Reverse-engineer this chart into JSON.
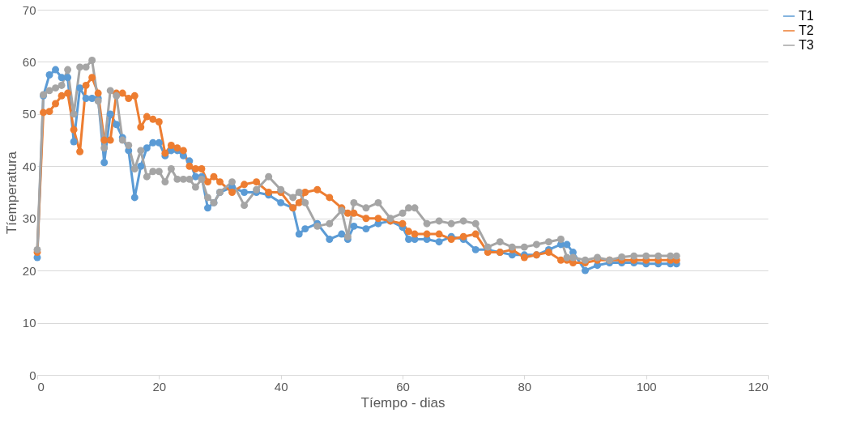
{
  "chart_data": {
    "type": "line",
    "xlabel": "Tíempo - dias",
    "ylabel": "Tíemperatura",
    "x": [
      0,
      1,
      2,
      3,
      4,
      5,
      6,
      7,
      8,
      9,
      10,
      11,
      12,
      13,
      14,
      15,
      16,
      17,
      18,
      19,
      20,
      21,
      22,
      23,
      24,
      25,
      26,
      27,
      28,
      29,
      30,
      32,
      34,
      36,
      38,
      40,
      42,
      43,
      44,
      46,
      48,
      50,
      51,
      52,
      54,
      56,
      58,
      60,
      61,
      62,
      64,
      66,
      68,
      70,
      72,
      74,
      76,
      78,
      80,
      82,
      84,
      86,
      87,
      88,
      90,
      92,
      94,
      96,
      98,
      100,
      102,
      104,
      105
    ],
    "series": [
      {
        "name": "T1",
        "color": "#5b9bd5",
        "values": [
          22.5,
          53.5,
          57.5,
          58.5,
          57,
          57,
          44.7,
          55,
          53,
          53,
          53,
          40.7,
          50,
          48,
          45.5,
          43,
          34,
          40,
          43.5,
          44.5,
          44.5,
          42,
          43,
          43,
          42,
          41,
          38,
          38,
          32,
          33,
          35,
          36,
          35,
          35,
          34.5,
          33,
          32,
          27,
          28,
          29,
          26,
          27,
          26,
          28.5,
          28,
          29,
          29.5,
          28.3,
          26,
          26,
          26,
          25.5,
          26.5,
          26,
          24,
          24,
          23.5,
          23,
          23,
          23,
          24,
          25,
          25,
          23.5,
          20,
          21,
          21.5,
          21.5,
          21.5,
          21.3,
          21.3,
          21.3,
          21.3
        ]
      },
      {
        "name": "T2",
        "color": "#ed7d31",
        "values": [
          23.5,
          50.3,
          50.5,
          52,
          53.5,
          54,
          47,
          42.8,
          55.5,
          57,
          54,
          45,
          45,
          54,
          54,
          53,
          53.5,
          47.5,
          49.5,
          49,
          48.5,
          42.5,
          44,
          43.5,
          43,
          40,
          39.5,
          39.5,
          37,
          38,
          37,
          35,
          36.5,
          37,
          35,
          35,
          32,
          33,
          35,
          35.5,
          34,
          32,
          31,
          31,
          30,
          30,
          29.5,
          29,
          27.5,
          27,
          27,
          27,
          26,
          26.5,
          27,
          23.5,
          23.5,
          24,
          22.5,
          23,
          23.5,
          22,
          22,
          21.5,
          21.5,
          22,
          22,
          22,
          22,
          22,
          22,
          22,
          22
        ]
      },
      {
        "name": "T3",
        "color": "#a5a5a5",
        "values": [
          24,
          53.7,
          54.5,
          55,
          55.5,
          58.5,
          50,
          59,
          59,
          60.3,
          52.5,
          43.5,
          54.5,
          53.5,
          45,
          44,
          39.5,
          43,
          38,
          39,
          39,
          37,
          39.5,
          37.5,
          37.5,
          37.5,
          36,
          37.5,
          34,
          33,
          35,
          37,
          32.5,
          35.5,
          38,
          35.5,
          34,
          35,
          33,
          28.5,
          29,
          31.5,
          26.5,
          33,
          32,
          33,
          30,
          31,
          32,
          32,
          29,
          29.5,
          29,
          29.5,
          29,
          24.5,
          25.5,
          24.5,
          24.5,
          25,
          25.5,
          26,
          22.5,
          22.5,
          22,
          22.5,
          22,
          22.6,
          22.8,
          22.8,
          22.8,
          22.8,
          22.8
        ]
      }
    ],
    "xlim": [
      0,
      120
    ],
    "xticks": [
      0,
      20,
      40,
      60,
      80,
      100,
      120
    ],
    "ylim": [
      0,
      70
    ],
    "yticks": [
      0,
      10,
      20,
      30,
      40,
      50,
      60,
      70
    ],
    "grid": "y",
    "legend": "right",
    "marker": "circle",
    "line_style": "solid"
  }
}
